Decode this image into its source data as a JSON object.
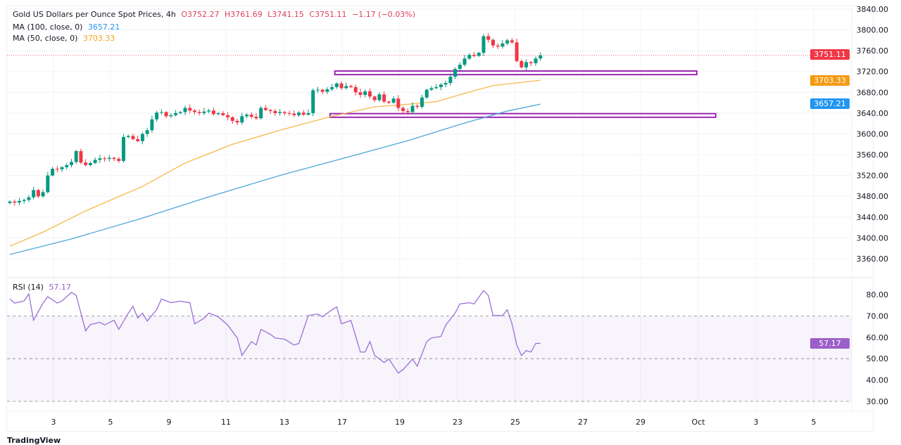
{
  "header": {
    "title": "Gold US Dollars per Ounce Spot Prices, 4h",
    "open": "O3752.27",
    "high": "H3761.69",
    "low": "L3741.15",
    "close": "C3751.11",
    "change": "−1.17 (−0.03%)",
    "ma100_label": "MA (100, close, 0)",
    "ma100_value": "3657.21",
    "ma50_label": "MA (50, close, 0)",
    "ma50_value": "3703.33"
  },
  "rsi_header": {
    "label": "RSI (14)",
    "value": "57.17"
  },
  "tags": {
    "price": "3751.11",
    "ma50": "3703.33",
    "ma100": "3657.21",
    "rsi": "57.17"
  },
  "branding": "TradingView",
  "colors": {
    "up": "#089981",
    "down": "#f23645",
    "ma50": "#f7b84b",
    "ma100": "#4ea7d8",
    "rsi": "#9c6fd6",
    "box": "#9c27b0"
  },
  "chart_data": [
    {
      "type": "candlestick",
      "title": "Gold US Dollars per Ounce Spot Prices, 4h",
      "ylim": [
        3340,
        3850
      ],
      "y_ticks": [
        "3840.00",
        "3800.00",
        "3760.00",
        "3720.00",
        "3680.00",
        "3640.00",
        "3600.00",
        "3560.00",
        "3520.00",
        "3480.00",
        "3440.00",
        "3400.00",
        "3360.00"
      ],
      "x_ticks": [
        "3",
        "5",
        "9",
        "11",
        "13",
        "17",
        "19",
        "23",
        "25",
        "27",
        "29",
        "Oct",
        "3",
        "5"
      ],
      "closes": [
        3470,
        3468,
        3471,
        3473,
        3478,
        3492,
        3480,
        3488,
        3520,
        3533,
        3532,
        3536,
        3540,
        3546,
        3567,
        3545,
        3540,
        3544,
        3550,
        3553,
        3552,
        3554,
        3552,
        3548,
        3594,
        3596,
        3590,
        3586,
        3600,
        3607,
        3628,
        3641,
        3642,
        3634,
        3636,
        3640,
        3642,
        3650,
        3645,
        3642,
        3640,
        3643,
        3645,
        3638,
        3640,
        3636,
        3632,
        3625,
        3622,
        3634,
        3637,
        3633,
        3630,
        3650,
        3646,
        3644,
        3640,
        3642,
        3640,
        3639,
        3636,
        3641,
        3637,
        3640,
        3684,
        3685,
        3681,
        3686,
        3690,
        3697,
        3688,
        3692,
        3690,
        3680,
        3675,
        3682,
        3672,
        3665,
        3676,
        3662,
        3660,
        3668,
        3650,
        3644,
        3642,
        3654,
        3652,
        3670,
        3685,
        3688,
        3690,
        3695,
        3698,
        3710,
        3725,
        3733,
        3745,
        3752,
        3750,
        3756,
        3788,
        3781,
        3770,
        3768,
        3774,
        3780,
        3776,
        3740,
        3728,
        3738,
        3736,
        3745,
        3751.11
      ],
      "ma50": [
        [
          0,
          3384
        ],
        [
          7,
          3411
        ],
        [
          16,
          3452
        ],
        [
          28,
          3499
        ],
        [
          37,
          3544
        ],
        [
          47,
          3580
        ],
        [
          57,
          3607
        ],
        [
          68,
          3634
        ],
        [
          77,
          3652
        ],
        [
          84,
          3657
        ],
        [
          90,
          3662
        ],
        [
          96,
          3678
        ],
        [
          102,
          3693
        ],
        [
          112,
          3703.33
        ]
      ],
      "ma100": [
        [
          0,
          3368
        ],
        [
          13,
          3398
        ],
        [
          28,
          3438
        ],
        [
          42,
          3479
        ],
        [
          57,
          3520
        ],
        [
          72,
          3557
        ],
        [
          84,
          3587
        ],
        [
          96,
          3621
        ],
        [
          105,
          3644
        ],
        [
          112,
          3657.21
        ]
      ],
      "zones": [
        {
          "from_bar": 68.6,
          "to_bar": 145,
          "top": 3721,
          "bottom": 3714
        },
        {
          "from_bar": 67.6,
          "to_bar": 149,
          "top": 3639,
          "bottom": 3632
        }
      ],
      "last_price": 3751.11
    },
    {
      "type": "line",
      "title": "RSI (14)",
      "ylim": [
        25,
        85
      ],
      "y_ticks": [
        "80.00",
        "70.00",
        "60.00",
        "50.00",
        "40.00",
        "30.00"
      ],
      "levels": [
        70,
        50,
        30
      ],
      "rsi": [
        [
          0,
          78
        ],
        [
          1,
          76
        ],
        [
          3,
          77
        ],
        [
          4,
          80.3
        ],
        [
          5,
          68
        ],
        [
          7,
          76
        ],
        [
          8,
          79
        ],
        [
          10,
          76
        ],
        [
          11,
          77
        ],
        [
          13,
          81
        ],
        [
          14,
          79.6
        ],
        [
          16,
          63
        ],
        [
          17,
          66
        ],
        [
          19,
          67
        ],
        [
          20,
          65.8
        ],
        [
          22,
          68
        ],
        [
          23,
          63.7
        ],
        [
          25,
          71.3
        ],
        [
          26,
          74.5
        ],
        [
          27,
          69
        ],
        [
          28,
          71.3
        ],
        [
          29,
          67.6
        ],
        [
          31,
          73
        ],
        [
          32,
          77.9
        ],
        [
          34,
          76.2
        ],
        [
          36,
          76.9
        ],
        [
          38,
          76.2
        ],
        [
          39,
          66.3
        ],
        [
          41,
          68.9
        ],
        [
          42,
          71.3
        ],
        [
          44,
          69.6
        ],
        [
          46,
          65.7
        ],
        [
          48,
          59.7
        ],
        [
          49,
          51.5
        ],
        [
          51,
          58
        ],
        [
          52,
          56.4
        ],
        [
          53,
          63.7
        ],
        [
          55,
          61.4
        ],
        [
          56,
          59.7
        ],
        [
          58,
          59.1
        ],
        [
          60,
          56.4
        ],
        [
          61,
          57.1
        ],
        [
          63,
          70.2
        ],
        [
          65,
          70.9
        ],
        [
          66,
          69.6
        ],
        [
          68,
          72.9
        ],
        [
          69,
          74.2
        ],
        [
          70,
          66.3
        ],
        [
          72,
          67.9
        ],
        [
          74,
          53.1
        ],
        [
          75,
          53.1
        ],
        [
          76,
          58
        ],
        [
          77,
          51.5
        ],
        [
          79,
          48.2
        ],
        [
          80,
          49.8
        ],
        [
          82,
          43.3
        ],
        [
          83,
          44.9
        ],
        [
          85,
          49.8
        ],
        [
          86,
          46.5
        ],
        [
          88,
          58
        ],
        [
          89,
          59.7
        ],
        [
          91,
          60.4
        ],
        [
          92,
          65.7
        ],
        [
          94,
          71.3
        ],
        [
          95,
          75.6
        ],
        [
          97,
          76.2
        ],
        [
          98,
          75.6
        ],
        [
          100,
          81.9
        ],
        [
          101,
          79.6
        ],
        [
          102,
          70.2
        ],
        [
          104,
          70.2
        ],
        [
          105,
          72.9
        ],
        [
          106,
          66.3
        ],
        [
          107,
          56.4
        ],
        [
          108,
          51.5
        ],
        [
          109,
          53.8
        ],
        [
          110,
          53.1
        ],
        [
          111,
          57.1
        ],
        [
          112,
          57.17
        ]
      ]
    }
  ]
}
